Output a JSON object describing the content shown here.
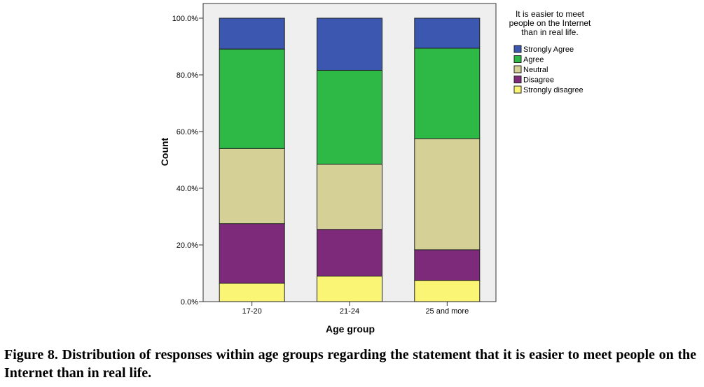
{
  "chart_data": {
    "type": "bar",
    "stacked": true,
    "xlabel": "Age group",
    "ylabel": "Count",
    "ylim": [
      0,
      100
    ],
    "yticks": [
      "0.0%",
      "20.0%",
      "40.0%",
      "60.0%",
      "80.0%",
      "100.0%"
    ],
    "categories": [
      "17-20",
      "21-24",
      "25 and more"
    ],
    "legend_title": [
      "It is easier to meet",
      "people on the Internet",
      "than in real life."
    ],
    "legend_position": "right",
    "series": [
      {
        "name": "Strongly disagree",
        "color": "#FAF575",
        "values": [
          6.5,
          9.0,
          7.5
        ]
      },
      {
        "name": "Disagree",
        "color": "#7E2A7B",
        "values": [
          21.0,
          16.5,
          10.8
        ]
      },
      {
        "name": "Neutral",
        "color": "#D4D096",
        "values": [
          26.5,
          23.0,
          39.2
        ]
      },
      {
        "name": "Agree",
        "color": "#2EB846",
        "values": [
          35.1,
          33.1,
          31.9
        ]
      },
      {
        "name": "Strongly Agree",
        "color": "#3C57B0",
        "values": [
          10.9,
          18.4,
          10.6
        ]
      }
    ],
    "legend_order": [
      "Strongly Agree",
      "Agree",
      "Neutral",
      "Disagree",
      "Strongly disagree"
    ],
    "plot_background": "#EFEFEF"
  },
  "caption": "Figure 8. Distribution of responses within age groups regarding the statement that it is easier to meet people on the Internet than in real life."
}
